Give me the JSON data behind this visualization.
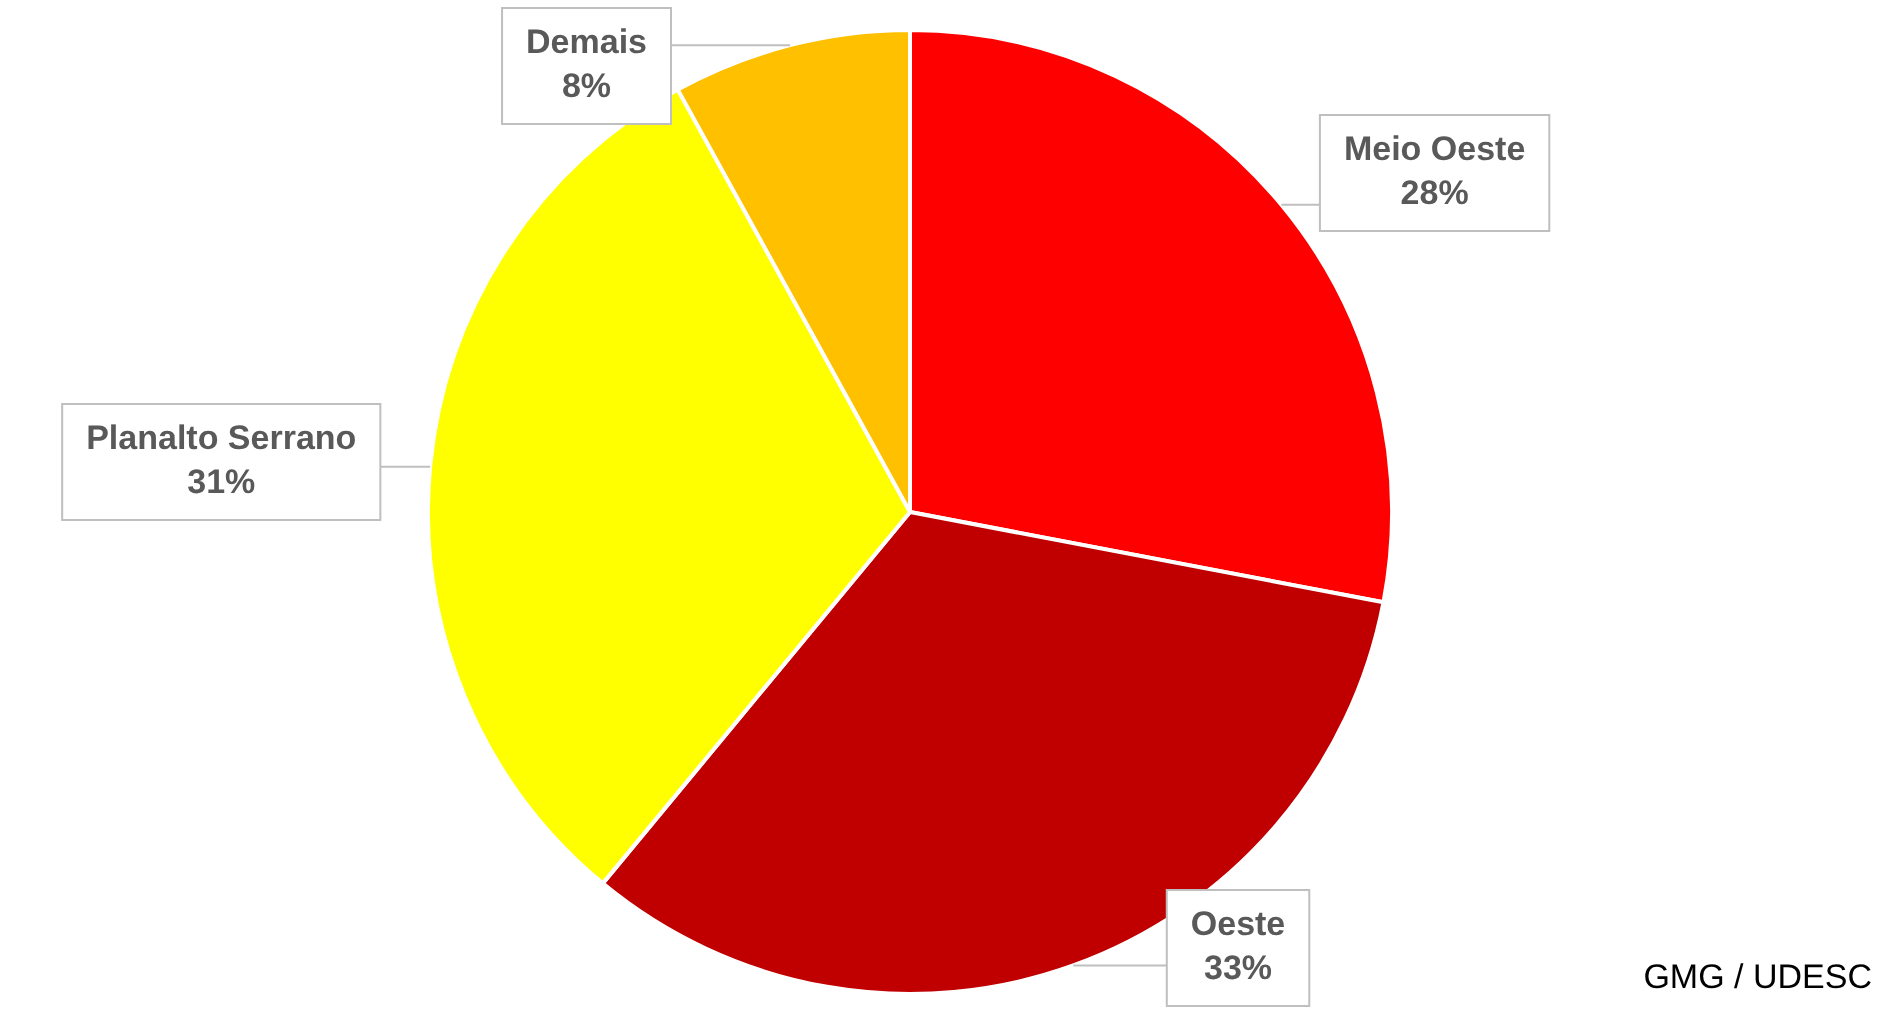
{
  "chart_data": {
    "type": "pie",
    "categories": [
      "Meio Oeste",
      "Oeste",
      "Planalto Serrano",
      "Demais"
    ],
    "values": [
      28,
      33,
      31,
      8
    ],
    "value_labels": [
      "28%",
      "33%",
      "31%",
      "8%"
    ],
    "colors": [
      "#ff0000",
      "#c00000",
      "#ffff00",
      "#ffc000"
    ],
    "legend": false,
    "annotations": [
      "GMG / UDESC"
    ]
  }
}
